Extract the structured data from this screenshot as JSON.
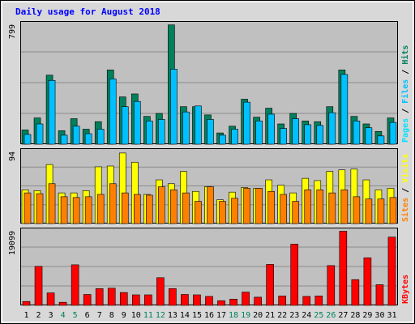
{
  "title": "Daily usage for August 2018",
  "colors": {
    "hits": "#00805c",
    "files": "#00c0ff",
    "pages": "#00e0ff",
    "visits": "#ffff00",
    "sites": "#ff8000",
    "kbytes": "#ff0000",
    "panel_bg": "#c0c0c0",
    "frame": "#d8d8d8",
    "weekend": "#00805c",
    "weekday": "#000000",
    "title": "#0000ff"
  },
  "chart_data": [
    {
      "type": "bar",
      "panel": "top",
      "ymax_label": "799",
      "ylim": [
        0,
        799
      ],
      "grid": true,
      "legend": "right (vertical)",
      "legend_text": [
        {
          "key": "pages",
          "text": "Pages"
        },
        {
          "key": "sep",
          "text": " / "
        },
        {
          "key": "files",
          "text": "Files"
        },
        {
          "key": "sep",
          "text": " / "
        },
        {
          "key": "hits",
          "text": "Hits"
        }
      ],
      "categories": [
        "1",
        "2",
        "3",
        "4",
        "5",
        "6",
        "7",
        "8",
        "9",
        "10",
        "11",
        "12",
        "13",
        "14",
        "15",
        "16",
        "17",
        "18",
        "19",
        "20",
        "21",
        "22",
        "23",
        "24",
        "25",
        "26",
        "27",
        "28",
        "29",
        "30",
        "31"
      ],
      "series": [
        {
          "name": "Hits",
          "key": "hits",
          "values": [
            95,
            175,
            460,
            90,
            170,
            100,
            150,
            495,
            315,
            335,
            185,
            205,
            795,
            250,
            250,
            195,
            75,
            120,
            300,
            180,
            240,
            135,
            205,
            155,
            150,
            250,
            495,
            185,
            135,
            85,
            175
          ]
        },
        {
          "name": "Files",
          "key": "files",
          "values": [
            65,
            135,
            425,
            60,
            120,
            70,
            100,
            435,
            250,
            285,
            155,
            165,
            500,
            215,
            255,
            165,
            60,
            100,
            280,
            155,
            200,
            105,
            170,
            130,
            125,
            210,
            465,
            155,
            110,
            55,
            145
          ]
        },
        {
          "name": "Pages",
          "key": "pages",
          "values": [
            0,
            0,
            0,
            0,
            0,
            0,
            0,
            0,
            0,
            0,
            0,
            0,
            0,
            0,
            0,
            0,
            0,
            0,
            0,
            0,
            0,
            0,
            0,
            0,
            0,
            0,
            0,
            0,
            0,
            0,
            0
          ]
        }
      ]
    },
    {
      "type": "bar",
      "panel": "middle",
      "ymax_label": "94",
      "ylim": [
        0,
        94
      ],
      "grid": true,
      "legend": "right (vertical)",
      "legend_text": [
        {
          "key": "sites",
          "text": "Sites"
        },
        {
          "key": "sep",
          "text": " / "
        },
        {
          "key": "visits",
          "text": "Visits"
        }
      ],
      "categories": [
        "1",
        "2",
        "3",
        "4",
        "5",
        "6",
        "7",
        "8",
        "9",
        "10",
        "11",
        "12",
        "13",
        "14",
        "15",
        "16",
        "17",
        "18",
        "19",
        "20",
        "21",
        "22",
        "23",
        "24",
        "25",
        "26",
        "27",
        "28",
        "29",
        "30",
        "31"
      ],
      "series": [
        {
          "name": "Visits",
          "key": "visits",
          "values": [
            44,
            43,
            77,
            40,
            40,
            43,
            74,
            75,
            92,
            80,
            38,
            57,
            52,
            68,
            42,
            48,
            31,
            41,
            47,
            46,
            57,
            50,
            40,
            59,
            56,
            68,
            70,
            71,
            57,
            44,
            46
          ]
        },
        {
          "name": "Sites",
          "key": "sites",
          "values": [
            40,
            39,
            52,
            35,
            34,
            35,
            38,
            52,
            40,
            38,
            37,
            48,
            44,
            40,
            29,
            48,
            29,
            33,
            46,
            46,
            42,
            38,
            29,
            44,
            44,
            40,
            44,
            35,
            32,
            32,
            34
          ]
        }
      ]
    },
    {
      "type": "bar",
      "panel": "bottom",
      "ymax_label": "19099",
      "ylim": [
        0,
        19099
      ],
      "grid": true,
      "legend": "right (vertical)",
      "legend_text": [
        {
          "key": "kbytes",
          "text": "KBytes"
        }
      ],
      "categories": [
        "1",
        "2",
        "3",
        "4",
        "5",
        "6",
        "7",
        "8",
        "9",
        "10",
        "11",
        "12",
        "13",
        "14",
        "15",
        "16",
        "17",
        "18",
        "19",
        "20",
        "21",
        "22",
        "23",
        "24",
        "25",
        "26",
        "27",
        "28",
        "29",
        "30",
        "31"
      ],
      "series": [
        {
          "name": "KBytes",
          "key": "kbytes",
          "values": [
            1000,
            10000,
            3200,
            800,
            10400,
            2800,
            4300,
            4400,
            3300,
            2700,
            2700,
            7100,
            4300,
            2800,
            2700,
            2300,
            1200,
            1600,
            3400,
            2100,
            10500,
            2400,
            15700,
            2300,
            2400,
            10200,
            19000,
            6600,
            12200,
            5300,
            17500
          ]
        }
      ]
    }
  ],
  "weekend_days": [
    "4",
    "5",
    "11",
    "12",
    "18",
    "19",
    "25",
    "26"
  ]
}
